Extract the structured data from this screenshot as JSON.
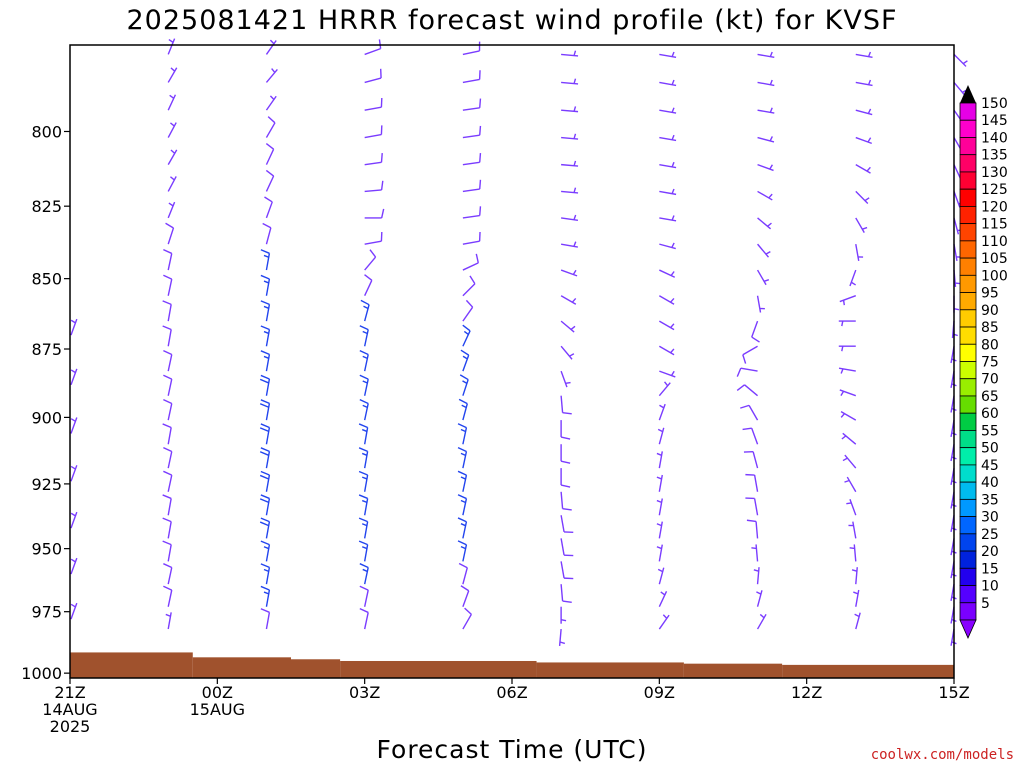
{
  "chart_data": {
    "type": "wind-barb-time-height",
    "title": "2025081421 HRRR forecast wind profile (kt) for KVSF",
    "xlabel": "Forecast Time (UTC)",
    "ylabel": "",
    "y_scale": "log-pressure",
    "ylim_hpa": [
      1002,
      772
    ],
    "xlim_hours": [
      0,
      18
    ],
    "y_ticks": [
      {
        "value": 800,
        "label": "800"
      },
      {
        "value": 825,
        "label": "825"
      },
      {
        "value": 850,
        "label": "850"
      },
      {
        "value": 875,
        "label": "875"
      },
      {
        "value": 900,
        "label": "900"
      },
      {
        "value": 925,
        "label": "925"
      },
      {
        "value": 950,
        "label": "950"
      },
      {
        "value": 975,
        "label": "975"
      },
      {
        "value": 1000,
        "label": "1000"
      }
    ],
    "x_ticks": [
      {
        "hour": 0,
        "lines": [
          "21Z",
          "14AUG",
          "2025"
        ]
      },
      {
        "hour": 3,
        "lines": [
          "00Z",
          "15AUG"
        ]
      },
      {
        "hour": 6,
        "lines": [
          "03Z"
        ]
      },
      {
        "hour": 9,
        "lines": [
          "06Z"
        ]
      },
      {
        "hour": 12,
        "lines": [
          "09Z"
        ]
      },
      {
        "hour": 15,
        "lines": [
          "12Z"
        ]
      },
      {
        "hour": 18,
        "lines": [
          "15Z"
        ]
      }
    ],
    "terrain": {
      "color": "#a0522d",
      "steps": [
        {
          "from_hour": 0,
          "to_hour": 2.5,
          "surface_hpa": 991.5
        },
        {
          "from_hour": 2.5,
          "to_hour": 4.5,
          "surface_hpa": 993.5
        },
        {
          "from_hour": 4.5,
          "to_hour": 5.5,
          "surface_hpa": 994.3
        },
        {
          "from_hour": 5.5,
          "to_hour": 9.5,
          "surface_hpa": 995.0
        },
        {
          "from_hour": 9.5,
          "to_hour": 12.5,
          "surface_hpa": 995.6
        },
        {
          "from_hour": 12.5,
          "to_hour": 14.5,
          "surface_hpa": 996.1
        },
        {
          "from_hour": 14.5,
          "to_hour": 18,
          "surface_hpa": 996.6
        }
      ]
    },
    "levels_hpa": [
      775,
      784,
      793,
      802,
      811,
      820,
      829,
      838,
      847,
      856,
      865,
      874,
      883,
      892,
      901,
      910,
      919,
      928,
      937,
      946,
      955,
      964,
      973,
      982
    ],
    "barb_series": [
      {
        "hour": 2,
        "dir_deg": [
          22,
          30,
          25,
          28,
          30,
          28,
          22,
          18,
          12,
          12,
          10,
          10,
          12,
          12,
          12,
          10,
          12,
          12,
          10,
          10,
          10,
          12,
          12,
          10
        ],
        "speed_kt": [
          8,
          8,
          8,
          9,
          9,
          9,
          9,
          10,
          11,
          12,
          12,
          12,
          13,
          13,
          13,
          13,
          13,
          13,
          13,
          13,
          12,
          11,
          10,
          9
        ]
      },
      {
        "hour": 4,
        "dir_deg": [
          35,
          40,
          35,
          30,
          25,
          25,
          20,
          15,
          10,
          10,
          10,
          10,
          10,
          10,
          10,
          10,
          10,
          10,
          10,
          10,
          10,
          10,
          10,
          10
        ],
        "speed_kt": [
          9,
          9,
          9,
          10,
          10,
          11,
          12,
          13,
          15,
          17,
          18,
          19,
          19,
          20,
          20,
          20,
          20,
          20,
          20,
          20,
          19,
          17,
          15,
          13
        ]
      },
      {
        "hour": 6,
        "dir_deg": [
          70,
          75,
          80,
          80,
          82,
          85,
          90,
          80,
          40,
          25,
          15,
          12,
          12,
          12,
          12,
          10,
          10,
          10,
          10,
          10,
          10,
          12,
          12,
          12
        ],
        "speed_kt": [
          10,
          10,
          10,
          10,
          10,
          11,
          11,
          12,
          13,
          14,
          15,
          16,
          17,
          17,
          18,
          18,
          18,
          18,
          17,
          17,
          16,
          15,
          13,
          11
        ]
      },
      {
        "hour": 8,
        "dir_deg": [
          78,
          80,
          82,
          82,
          82,
          82,
          82,
          80,
          65,
          45,
          35,
          25,
          20,
          18,
          15,
          12,
          12,
          12,
          12,
          12,
          12,
          15,
          20,
          30
        ],
        "speed_kt": [
          10,
          10,
          10,
          10,
          10,
          10,
          10,
          11,
          12,
          13,
          14,
          15,
          16,
          16,
          17,
          18,
          18,
          18,
          18,
          18,
          16,
          14,
          12,
          10
        ]
      },
      {
        "hour": 10,
        "dir_deg": [
          95,
          95,
          95,
          95,
          95,
          95,
          98,
          100,
          110,
          120,
          130,
          140,
          160,
          175,
          180,
          180,
          180,
          175,
          170,
          170,
          170,
          175,
          180,
          185
        ],
        "speed_kt": [
          9,
          9,
          9,
          9,
          9,
          9,
          9,
          9,
          8,
          8,
          8,
          9,
          9,
          10,
          10,
          10,
          10,
          11,
          11,
          11,
          11,
          10,
          9,
          8
        ]
      },
      {
        "hour": 12,
        "dir_deg": [
          100,
          100,
          100,
          100,
          100,
          100,
          100,
          105,
          115,
          120,
          120,
          120,
          110,
          40,
          20,
          15,
          10,
          10,
          10,
          10,
          10,
          15,
          25,
          35
        ],
        "speed_kt": [
          9,
          9,
          9,
          9,
          9,
          9,
          9,
          9,
          8,
          8,
          8,
          8,
          7,
          6,
          6,
          6,
          6,
          7,
          7,
          7,
          7,
          6,
          6,
          5
        ]
      },
      {
        "hour": 14,
        "dir_deg": [
          100,
          100,
          100,
          105,
          110,
          120,
          130,
          140,
          150,
          170,
          200,
          240,
          280,
          310,
          330,
          340,
          345,
          350,
          350,
          355,
          355,
          5,
          15,
          30
        ],
        "speed_kt": [
          7,
          7,
          7,
          7,
          8,
          8,
          8,
          9,
          9,
          9,
          10,
          10,
          10,
          10,
          10,
          10,
          10,
          10,
          10,
          10,
          9,
          8,
          7,
          6
        ]
      },
      {
        "hour": 16,
        "dir_deg": [
          100,
          100,
          105,
          110,
          120,
          135,
          150,
          170,
          200,
          250,
          270,
          270,
          280,
          290,
          300,
          310,
          320,
          330,
          340,
          350,
          355,
          5,
          10,
          15
        ],
        "speed_kt": [
          7,
          7,
          7,
          7,
          8,
          8,
          8,
          8,
          8,
          8,
          9,
          9,
          9,
          9,
          9,
          9,
          9,
          9,
          8,
          8,
          8,
          7,
          7,
          6
        ]
      },
      {
        "hour": 18,
        "dir_deg": [
          135,
          140,
          145,
          150,
          155,
          160,
          165,
          170,
          175,
          180,
          185,
          190,
          190,
          190,
          190,
          190,
          190,
          190,
          190,
          190,
          190,
          190,
          190,
          190
        ],
        "speed_kt": [
          6,
          6,
          6,
          6,
          7,
          7,
          7,
          7,
          7,
          7,
          7,
          7,
          7,
          7,
          7,
          7,
          7,
          7,
          7,
          7,
          7,
          7,
          7,
          7
        ]
      }
    ],
    "edge_barbs": {
      "hour": 0,
      "levels_hpa": [
        870,
        888,
        906,
        924,
        942,
        960,
        978
      ],
      "dir_deg": 20,
      "speed_kt": 5
    },
    "colorbar": {
      "labels": [
        "150",
        "145",
        "140",
        "135",
        "130",
        "125",
        "120",
        "115",
        "110",
        "105",
        "100",
        "95",
        "90",
        "85",
        "80",
        "75",
        "70",
        "65",
        "60",
        "55",
        "50",
        "45",
        "40",
        "35",
        "30",
        "25",
        "20",
        "15",
        "10",
        "5"
      ],
      "colors": [
        "#e600e6",
        "#ff00cc",
        "#ff0099",
        "#ff0066",
        "#ff0033",
        "#ff0000",
        "#ff2200",
        "#ff4400",
        "#ff6600",
        "#ff8000",
        "#ff9900",
        "#ffaa00",
        "#ffcc00",
        "#ffdd00",
        "#ffff00",
        "#ccff00",
        "#99ee00",
        "#66dd00",
        "#00cc44",
        "#00dd88",
        "#00eeaa",
        "#00ddcc",
        "#00bbee",
        "#0099ff",
        "#0066ff",
        "#0044ee",
        "#0022dd",
        "#2200ee",
        "#5500ff",
        "#7a00ff"
      ],
      "top_arrow_color": "#000000",
      "bottom_arrow_color": "#8800ff"
    },
    "barb_color_slow": "#7a3cff",
    "barb_color_fast": "#2244ee"
  },
  "credit": "coolwx.com/models"
}
